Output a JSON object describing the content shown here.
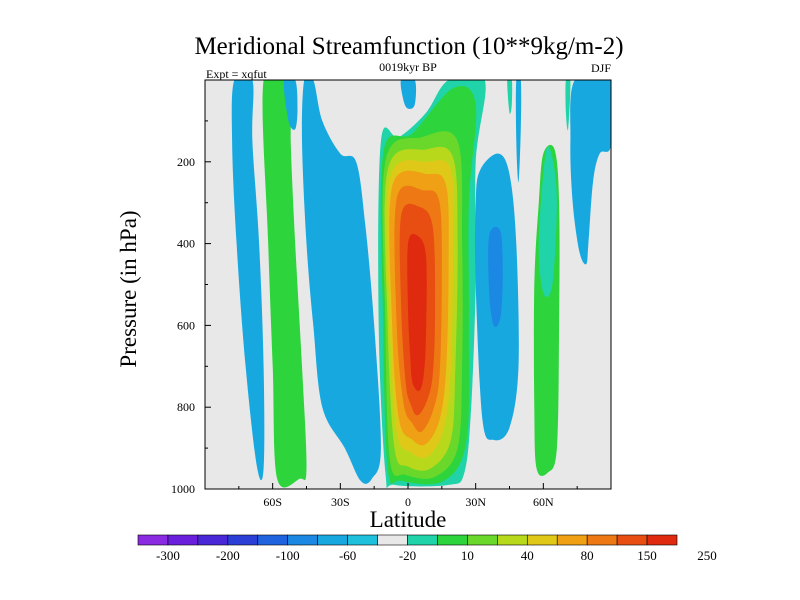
{
  "chart_data": {
    "type": "contour",
    "title": "Meridional Streamfunction (10**9kg/m-2)",
    "subtitle_left": "Expt = xqfut",
    "subtitle_center": "0019kyr BP",
    "subtitle_right": "DJF",
    "xlabel": "Latitude",
    "ylabel": "Pressure (in hPa)",
    "xlim": [
      -90,
      90
    ],
    "ylim": [
      0,
      1000
    ],
    "y_inverted": true,
    "x_ticks": [
      {
        "value": -60,
        "label": "60S"
      },
      {
        "value": -30,
        "label": "30S"
      },
      {
        "value": 0,
        "label": "0"
      },
      {
        "value": 30,
        "label": "30N"
      },
      {
        "value": 60,
        "label": "60N"
      }
    ],
    "y_ticks": [
      {
        "value": 200,
        "label": "200"
      },
      {
        "value": 400,
        "label": "400"
      },
      {
        "value": 600,
        "label": "600"
      },
      {
        "value": 800,
        "label": "800"
      },
      {
        "value": 1000,
        "label": "1000"
      }
    ],
    "background_color": "#e8e8e8",
    "colorbar": {
      "colors": [
        "#8a2be2",
        "#6a1fdc",
        "#4a28d8",
        "#2b3fd6",
        "#1f63de",
        "#1b88e3",
        "#18a8e0",
        "#1ec0dc",
        "#e8e8e8",
        "#20d3a8",
        "#2ed43c",
        "#6ad82a",
        "#b8d81c",
        "#e0c818",
        "#f0a014",
        "#ee7814",
        "#e84e12",
        "#e02a10"
      ],
      "boundary_labels": [
        "-300",
        "-200",
        "-100",
        "-60",
        "-20",
        "10",
        "40",
        "80",
        "150",
        "250"
      ]
    },
    "features": [
      {
        "name": "southern-deep-cell",
        "sign": "negative",
        "color": "#18a8e0",
        "outline": [
          [
            -77,
            0
          ],
          [
            -69,
            0
          ],
          [
            -69,
            150
          ],
          [
            -66,
            400
          ],
          [
            -64,
            700
          ],
          [
            -64,
            950
          ],
          [
            -67,
            945
          ],
          [
            -72,
            700
          ],
          [
            -76,
            400
          ],
          [
            -78,
            150
          ]
        ]
      },
      {
        "name": "southern-green-cell",
        "sign": "positive",
        "color": "#2ed43c",
        "outline": [
          [
            -64,
            0
          ],
          [
            -52,
            0
          ],
          [
            -52,
            150
          ],
          [
            -50,
            400
          ],
          [
            -47,
            700
          ],
          [
            -45,
            950
          ],
          [
            -48,
            975
          ],
          [
            -58,
            975
          ],
          [
            -60,
            700
          ],
          [
            -62,
            400
          ]
        ]
      },
      {
        "name": "southern-mid-negative",
        "sign": "negative",
        "color": "#18a8e0",
        "outline": [
          [
            -46,
            0
          ],
          [
            -42,
            0
          ],
          [
            -38,
            100
          ],
          [
            -30,
            180
          ],
          [
            -23,
            200
          ],
          [
            -19,
            350
          ],
          [
            -15,
            600
          ],
          [
            -12,
            900
          ],
          [
            -16,
            975
          ],
          [
            -21,
            980
          ],
          [
            -28,
            900
          ],
          [
            -38,
            800
          ],
          [
            -42,
            600
          ],
          [
            -45,
            400
          ],
          [
            -47,
            150
          ]
        ]
      },
      {
        "name": "top-left-negative",
        "sign": "negative",
        "color": "#18a8e0",
        "outline": [
          [
            -55,
            0
          ],
          [
            -50,
            0
          ],
          [
            -49,
            70
          ],
          [
            -50,
            120
          ],
          [
            -53,
            100
          ]
        ]
      },
      {
        "name": "hadley-cell-outer",
        "sign": "positive",
        "color": "#20d3a8",
        "outline": [
          [
            -12,
            150
          ],
          [
            -4,
            140
          ],
          [
            8,
            80
          ],
          [
            18,
            0
          ],
          [
            34,
            0
          ],
          [
            30,
            200
          ],
          [
            30,
            500
          ],
          [
            28,
            800
          ],
          [
            25,
            960
          ],
          [
            18,
            990
          ],
          [
            -6,
            990
          ],
          [
            -10,
            960
          ],
          [
            -13,
            600
          ]
        ]
      },
      {
        "name": "hadley-cell-10",
        "sign": "positive",
        "color": "#2ed43c",
        "outline": [
          [
            -11,
            180
          ],
          [
            2,
            130
          ],
          [
            20,
            20
          ],
          [
            30,
            60
          ],
          [
            27,
            300
          ],
          [
            27,
            600
          ],
          [
            26,
            880
          ],
          [
            16,
            980
          ],
          [
            -3,
            980
          ],
          [
            -9,
            950
          ],
          [
            -11,
            600
          ]
        ]
      },
      {
        "name": "hadley-cell-40",
        "sign": "positive",
        "color": "#6ad82a",
        "outline": [
          [
            -10,
            200
          ],
          [
            6,
            140
          ],
          [
            22,
            150
          ],
          [
            24,
            400
          ],
          [
            24,
            700
          ],
          [
            22,
            900
          ],
          [
            12,
            970
          ],
          [
            -1,
            965
          ],
          [
            -8,
            930
          ],
          [
            -10,
            600
          ]
        ]
      },
      {
        "name": "hadley-cell-60",
        "sign": "positive",
        "color": "#b8d81c",
        "outline": [
          [
            -9,
            220
          ],
          [
            8,
            170
          ],
          [
            20,
            190
          ],
          [
            22,
            400
          ],
          [
            21,
            700
          ],
          [
            19,
            880
          ],
          [
            10,
            950
          ],
          [
            0,
            945
          ],
          [
            -6,
            900
          ],
          [
            -9,
            600
          ]
        ]
      },
      {
        "name": "hadley-cell-80",
        "sign": "positive",
        "color": "#e0c818",
        "outline": [
          [
            -8,
            240
          ],
          [
            9,
            200
          ],
          [
            19,
            220
          ],
          [
            20,
            400
          ],
          [
            19,
            700
          ],
          [
            16,
            850
          ],
          [
            9,
            920
          ],
          [
            1,
            910
          ],
          [
            -5,
            860
          ],
          [
            -8,
            600
          ]
        ]
      },
      {
        "name": "hadley-cell-100",
        "sign": "positive",
        "color": "#f0a014",
        "outline": [
          [
            -7,
            260
          ],
          [
            9,
            230
          ],
          [
            17,
            260
          ],
          [
            18,
            450
          ],
          [
            17,
            700
          ],
          [
            14,
            830
          ],
          [
            8,
            890
          ],
          [
            2,
            880
          ],
          [
            -4,
            830
          ],
          [
            -7,
            600
          ]
        ]
      },
      {
        "name": "hadley-cell-150",
        "sign": "positive",
        "color": "#ee7814",
        "outline": [
          [
            -5,
            290
          ],
          [
            7,
            270
          ],
          [
            14,
            300
          ],
          [
            15,
            500
          ],
          [
            14,
            720
          ],
          [
            11,
            810
          ],
          [
            6,
            860
          ],
          [
            2,
            840
          ],
          [
            -2,
            790
          ],
          [
            -5,
            600
          ]
        ]
      },
      {
        "name": "hadley-cell-200",
        "sign": "positive",
        "color": "#e84e12",
        "outline": [
          [
            -3,
            330
          ],
          [
            5,
            310
          ],
          [
            11,
            360
          ],
          [
            12,
            560
          ],
          [
            11,
            720
          ],
          [
            8,
            790
          ],
          [
            4,
            820
          ],
          [
            1,
            790
          ],
          [
            -1,
            740
          ],
          [
            -3,
            560
          ]
        ]
      },
      {
        "name": "hadley-cell-core",
        "sign": "positive",
        "color": "#e02a10",
        "outline": [
          [
            0,
            400
          ],
          [
            4,
            380
          ],
          [
            8,
            430
          ],
          [
            8,
            620
          ],
          [
            7,
            720
          ],
          [
            5,
            760
          ],
          [
            2,
            740
          ],
          [
            1,
            680
          ],
          [
            0,
            560
          ]
        ]
      },
      {
        "name": "top-center-negative",
        "sign": "negative",
        "color": "#18a8e0",
        "outline": [
          [
            -3,
            0
          ],
          [
            3,
            0
          ],
          [
            3,
            60
          ],
          [
            0,
            70
          ],
          [
            -2,
            50
          ]
        ]
      },
      {
        "name": "northern-negative-cell",
        "sign": "negative",
        "color": "#18a8e0",
        "outline": [
          [
            32,
            220
          ],
          [
            40,
            180
          ],
          [
            45,
            230
          ],
          [
            48,
            400
          ],
          [
            49,
            700
          ],
          [
            45,
            850
          ],
          [
            38,
            880
          ],
          [
            33,
            830
          ],
          [
            30,
            500
          ],
          [
            30,
            300
          ]
        ]
      },
      {
        "name": "northern-negative-inner",
        "sign": "negative",
        "color": "#1b88e3",
        "outline": [
          [
            36,
            380
          ],
          [
            41,
            370
          ],
          [
            42,
            480
          ],
          [
            41,
            580
          ],
          [
            38,
            600
          ],
          [
            36,
            520
          ]
        ]
      },
      {
        "name": "northern-thin-negative",
        "sign": "negative",
        "color": "#18a8e0",
        "outline": [
          [
            48,
            0
          ],
          [
            50,
            0
          ],
          [
            50,
            120
          ],
          [
            49,
            250
          ],
          [
            48,
            150
          ]
        ]
      },
      {
        "name": "northern-thin-positive",
        "sign": "positive",
        "color": "#20d3a8",
        "outline": [
          [
            44,
            0
          ],
          [
            46,
            0
          ],
          [
            46,
            60
          ],
          [
            45,
            80
          ]
        ]
      },
      {
        "name": "northern-green-band",
        "sign": "positive",
        "color": "#2ed43c",
        "outline": [
          [
            60,
            180
          ],
          [
            65,
            170
          ],
          [
            67,
            300
          ],
          [
            67,
            600
          ],
          [
            66,
            900
          ],
          [
            62,
            960
          ],
          [
            57,
            950
          ],
          [
            56,
            800
          ],
          [
            56,
            500
          ],
          [
            58,
            300
          ]
        ]
      },
      {
        "name": "northern-green-band-outer",
        "sign": "positive",
        "color": "#20d3a8",
        "outline": [
          [
            61,
            180
          ],
          [
            64,
            190
          ],
          [
            66,
            300
          ],
          [
            64,
            500
          ],
          [
            60,
            520
          ],
          [
            58,
            400
          ]
        ]
      },
      {
        "name": "far-north-negative",
        "sign": "negative",
        "color": "#18a8e0",
        "outline": [
          [
            74,
            0
          ],
          [
            90,
            0
          ],
          [
            90,
            160
          ],
          [
            85,
            180
          ],
          [
            82,
            250
          ],
          [
            80,
            400
          ],
          [
            79,
            450
          ],
          [
            76,
            420
          ],
          [
            73,
            300
          ],
          [
            72,
            150
          ]
        ]
      },
      {
        "name": "far-north-positive-sliver",
        "sign": "positive",
        "color": "#20d3a8",
        "outline": [
          [
            70,
            0
          ],
          [
            72,
            0
          ],
          [
            71,
            120
          ],
          [
            70,
            80
          ]
        ]
      }
    ]
  }
}
